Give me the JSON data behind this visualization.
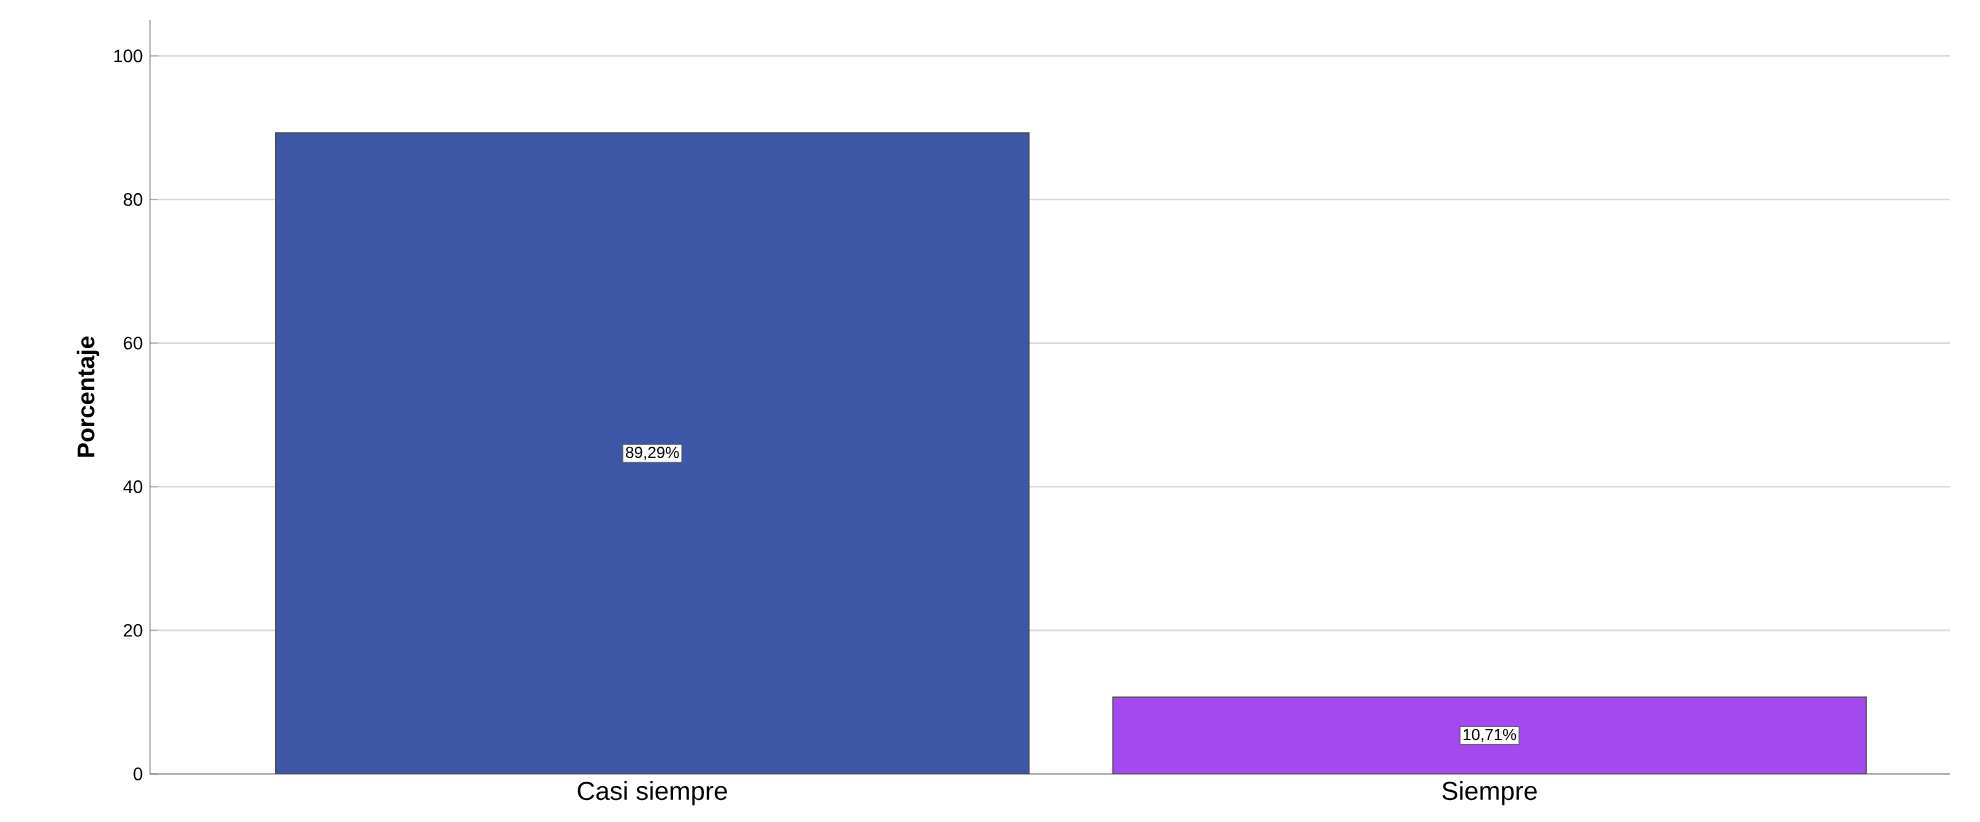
{
  "chart_data": {
    "type": "bar",
    "ylabel": "Porcentaje",
    "categories": [
      "Casi siempre",
      "Siempre"
    ],
    "values": [
      89.29,
      10.71
    ],
    "colors": [
      "#3d56a6",
      "#a349ef"
    ],
    "value_labels": [
      "89,29%",
      "10,71%"
    ],
    "ylim": [
      0,
      105
    ],
    "yticks": [
      0,
      20,
      40,
      60,
      80,
      100
    ],
    "grid": "y"
  }
}
